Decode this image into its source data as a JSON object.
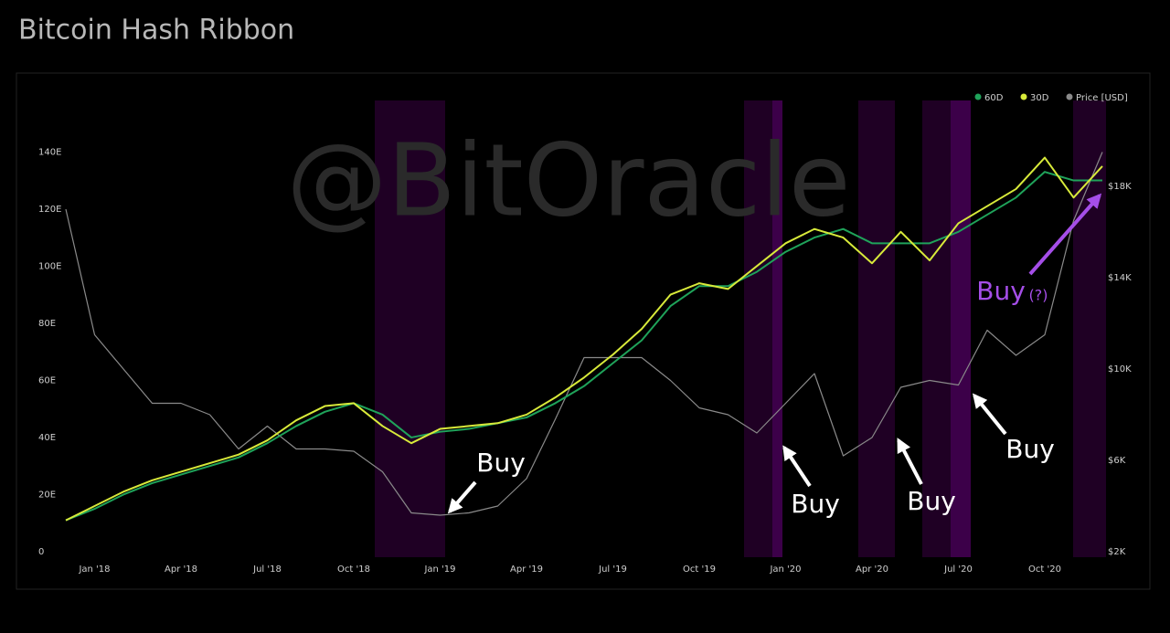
{
  "chart_data": {
    "type": "line",
    "title": "Bitcoin Hash Ribbon",
    "watermark": "@BitOracle",
    "categories": [
      null,
      "Jan '18",
      null,
      null,
      "Apr '18",
      null,
      null,
      "Jul '18",
      null,
      null,
      "Oct '18",
      null,
      null,
      "Jan '19",
      null,
      null,
      "Apr '19",
      null,
      null,
      "Jul '19",
      null,
      null,
      "Oct '19",
      null,
      null,
      "Jan '20",
      null,
      null,
      "Apr '20",
      null,
      null,
      "Jul '20",
      null,
      null,
      "Oct '20",
      null,
      null
    ],
    "series": [
      {
        "name": "60D",
        "color": "#1fa35a",
        "axis": "y",
        "values": [
          11,
          15,
          20,
          24,
          27,
          30,
          33,
          38,
          44,
          49,
          52,
          48,
          40,
          42,
          43,
          45,
          47,
          52,
          58,
          66,
          74,
          86,
          93,
          93,
          98,
          105,
          110,
          113,
          108,
          108,
          108,
          112,
          118,
          124,
          133,
          130,
          130
        ]
      },
      {
        "name": "30D",
        "color": "#d8ea3a",
        "axis": "y",
        "values": [
          11,
          16,
          21,
          25,
          28,
          31,
          34,
          39,
          46,
          51,
          52,
          44,
          38,
          43,
          44,
          45,
          48,
          54,
          61,
          69,
          78,
          90,
          94,
          92,
          100,
          108,
          113,
          110,
          101,
          112,
          102,
          115,
          121,
          127,
          138,
          124,
          135
        ]
      },
      {
        "name": "Price [USD]",
        "color": "#8a8a8a",
        "axis": "y2",
        "values": [
          17000,
          11500,
          10000,
          8500,
          8500,
          8000,
          6500,
          7500,
          6500,
          6500,
          6400,
          5500,
          3700,
          3600,
          3700,
          4000,
          5200,
          7800,
          10500,
          10500,
          10500,
          9500,
          8300,
          8000,
          7200,
          8500,
          9800,
          6200,
          7000,
          9200,
          9500,
          9300,
          11700,
          10600,
          11500,
          16500,
          19500
        ]
      }
    ],
    "ylim": [
      0,
      158
    ],
    "yticks": [
      0,
      {
        "value": 20,
        "label": "20E"
      },
      {
        "value": 40,
        "label": "40E"
      },
      {
        "value": 60,
        "label": "60E"
      },
      {
        "value": 80,
        "label": "80E"
      },
      {
        "value": 100,
        "label": "100E"
      },
      {
        "value": 120,
        "label": "120E"
      },
      {
        "value": 140,
        "label": "140E"
      }
    ],
    "y2lim": [
      2000,
      21760
    ],
    "y2ticks": [
      {
        "value": 2000,
        "label": "$2K"
      },
      {
        "value": 6000,
        "label": "$6K"
      },
      {
        "value": 10000,
        "label": "$10K"
      },
      {
        "value": 14000,
        "label": "$14K"
      },
      {
        "value": 18000,
        "label": "$18K"
      }
    ],
    "legend": "top-right",
    "annotations": [
      "Buy",
      "Buy",
      "Buy",
      "Buy",
      "Buy",
      "(?)"
    ]
  }
}
